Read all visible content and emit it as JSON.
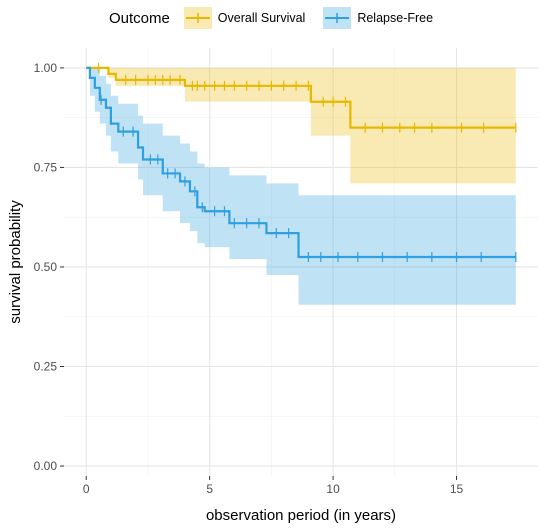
{
  "chart_data": {
    "type": "line",
    "xlabel": "observation period (in years)",
    "ylabel": "survival probability",
    "xlim": [
      -0.9,
      18.3
    ],
    "ylim": [
      -0.025,
      1.05
    ],
    "x_ticks": [
      0,
      5,
      10,
      15
    ],
    "x_tick_labels": [
      "0",
      "5",
      "10",
      "15"
    ],
    "y_ticks": [
      0,
      0.25,
      0.5,
      0.75,
      1.0
    ],
    "y_tick_labels": [
      "0.00",
      "0.25",
      "0.50",
      "0.75",
      "1.00"
    ],
    "grid": true,
    "legend": {
      "title": "Outcome",
      "position": "top",
      "entries": [
        "Overall Survival",
        "Relapse-Free"
      ]
    },
    "series": [
      {
        "name": "Overall Survival",
        "color": "#E7B800",
        "step_times": [
          0,
          0.9,
          1.2,
          4.0,
          9.1,
          10.7,
          17.4
        ],
        "survival": [
          1.0,
          0.985,
          0.97,
          0.955,
          0.915,
          0.85,
          0.85
        ],
        "ci_lower": [
          1.0,
          0.975,
          0.955,
          0.915,
          0.83,
          0.71,
          0.71
        ],
        "ci_upper": [
          1.0,
          1.0,
          1.0,
          1.0,
          1.0,
          1.0,
          1.0
        ],
        "censor_times": [
          0.5,
          1.6,
          2.0,
          2.5,
          2.8,
          3.1,
          3.4,
          3.8,
          4.3,
          4.5,
          4.8,
          5.2,
          5.6,
          6.0,
          6.5,
          7.0,
          7.5,
          8.0,
          8.5,
          9.0,
          9.6,
          10.0,
          10.5,
          11.3,
          12.0,
          12.7,
          13.3,
          14.0,
          15.2,
          16.1,
          17.4
        ]
      },
      {
        "name": "Relapse-Free",
        "color": "#2E9FDF",
        "step_times": [
          0,
          0.15,
          0.35,
          0.55,
          0.8,
          1.0,
          1.3,
          2.1,
          2.3,
          3.1,
          3.8,
          4.2,
          4.5,
          4.8,
          5.8,
          7.3,
          8.6,
          17.4
        ],
        "survival": [
          1.0,
          0.975,
          0.95,
          0.92,
          0.9,
          0.86,
          0.84,
          0.8,
          0.77,
          0.735,
          0.715,
          0.69,
          0.65,
          0.64,
          0.61,
          0.585,
          0.525,
          0.525
        ],
        "ci_lower": [
          1.0,
          0.93,
          0.89,
          0.86,
          0.83,
          0.79,
          0.76,
          0.72,
          0.68,
          0.64,
          0.61,
          0.59,
          0.56,
          0.55,
          0.52,
          0.48,
          0.405,
          0.405
        ],
        "ci_upper": [
          1.0,
          1.0,
          1.0,
          0.98,
          0.96,
          0.93,
          0.91,
          0.88,
          0.86,
          0.83,
          0.81,
          0.79,
          0.76,
          0.75,
          0.73,
          0.71,
          0.68,
          0.68
        ],
        "censor_times": [
          0.6,
          1.5,
          1.9,
          2.6,
          2.9,
          3.3,
          3.6,
          4.0,
          4.4,
          4.7,
          5.2,
          5.6,
          6.0,
          6.5,
          7.0,
          7.7,
          8.2,
          9.0,
          9.5,
          10.2,
          11.0,
          12.0,
          13.0,
          14.0,
          15.0,
          16.0,
          17.4
        ]
      }
    ]
  }
}
